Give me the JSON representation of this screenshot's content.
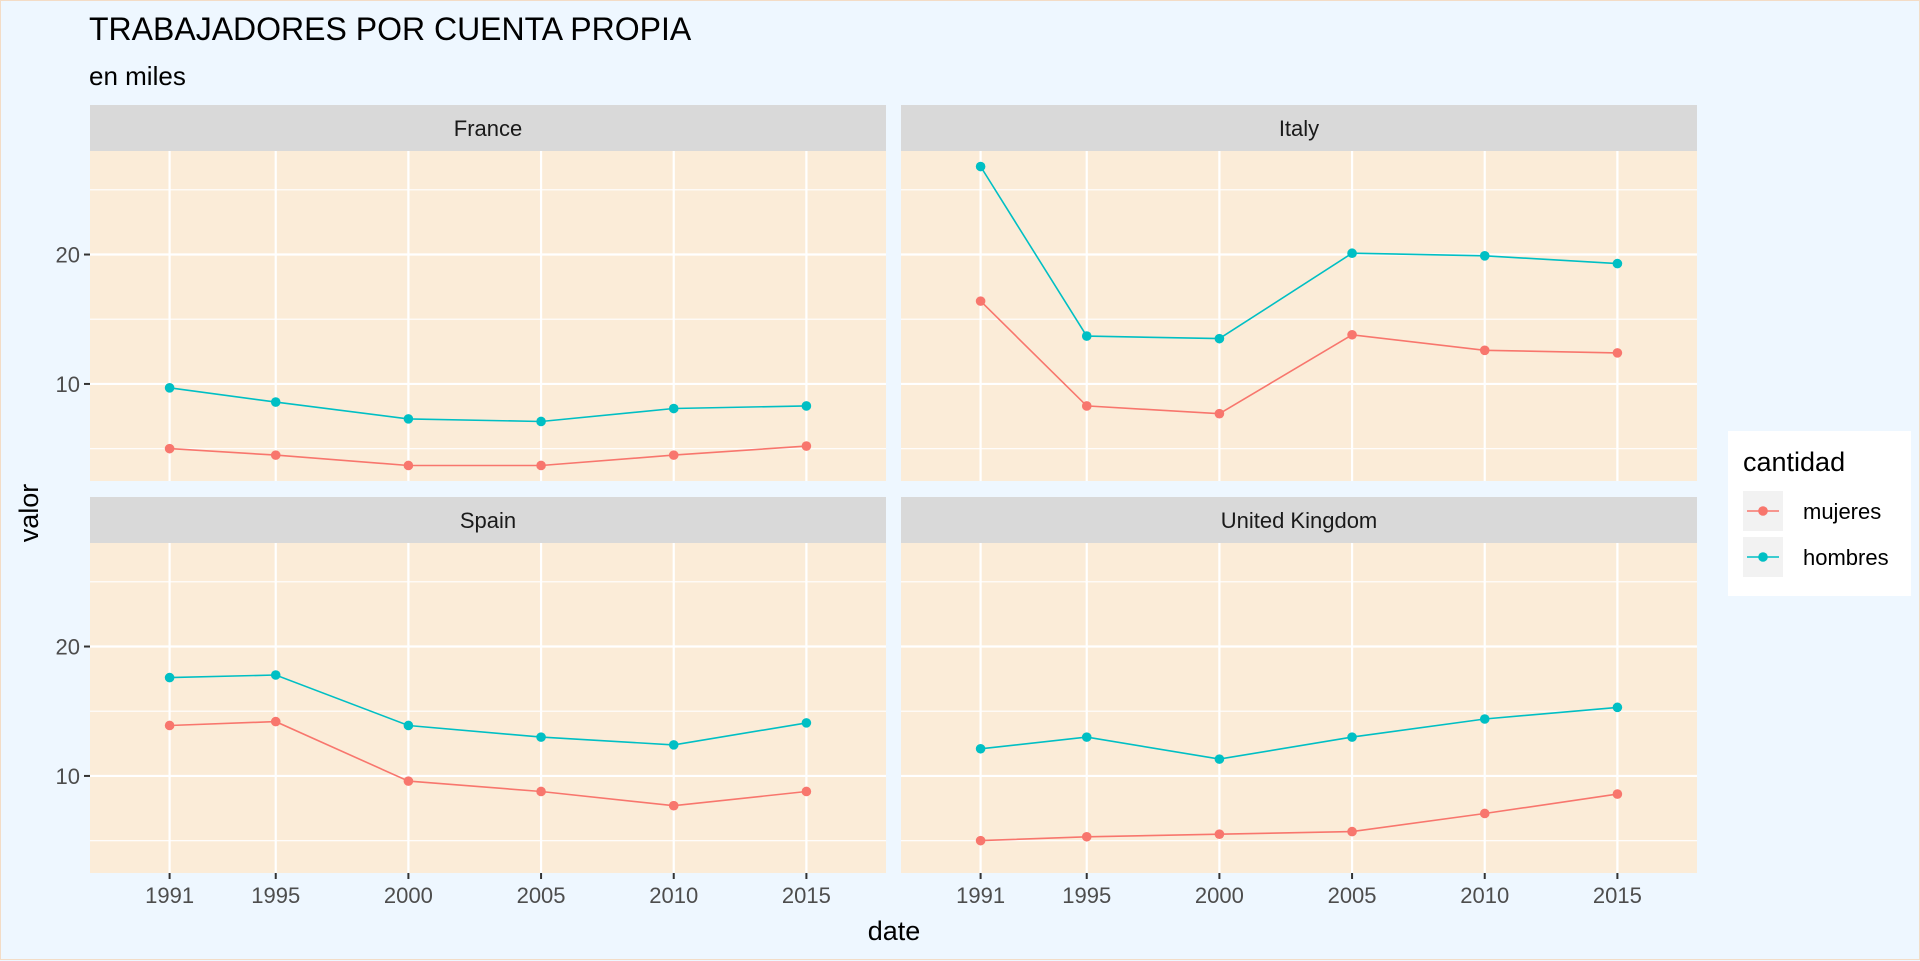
{
  "chart_data": {
    "type": "line",
    "title": "TRABAJADORES POR CUENTA PROPIA",
    "subtitle": "en miles",
    "xlabel": "date",
    "ylabel": "valor",
    "x": [
      1991,
      1995,
      2000,
      2005,
      2010,
      2015
    ],
    "xlim": [
      1988,
      2018
    ],
    "ylim": [
      2.5,
      28.0
    ],
    "y_ticks": [
      10,
      20
    ],
    "y_minor_ticks": [
      5,
      15,
      25
    ],
    "grid": true,
    "legend": {
      "title": "cantidad",
      "position": "right",
      "entries": [
        "mujeres",
        "hombres"
      ]
    },
    "colors": {
      "mujeres": "#F8766D",
      "hombres": "#00BFC4"
    },
    "background": {
      "page": "#eef7ff",
      "panel": "#fbecd8",
      "strip": "#d9d9d9",
      "grid": "#ffffff"
    },
    "facets": [
      {
        "name": "France",
        "series": [
          {
            "name": "mujeres",
            "values": [
              5.0,
              4.5,
              3.7,
              3.7,
              4.5,
              5.2
            ]
          },
          {
            "name": "hombres",
            "values": [
              9.7,
              8.6,
              7.3,
              7.1,
              8.1,
              8.3
            ]
          }
        ]
      },
      {
        "name": "Italy",
        "series": [
          {
            "name": "mujeres",
            "values": [
              16.4,
              8.3,
              7.7,
              13.8,
              12.6,
              12.4
            ]
          },
          {
            "name": "hombres",
            "values": [
              26.8,
              13.7,
              13.5,
              20.1,
              19.9,
              19.3
            ]
          }
        ]
      },
      {
        "name": "Spain",
        "series": [
          {
            "name": "mujeres",
            "values": [
              13.9,
              14.2,
              9.6,
              8.8,
              7.7,
              8.8
            ]
          },
          {
            "name": "hombres",
            "values": [
              17.6,
              17.8,
              13.9,
              13.0,
              12.4,
              14.1
            ]
          }
        ]
      },
      {
        "name": "United Kingdom",
        "series": [
          {
            "name": "mujeres",
            "values": [
              5.0,
              5.3,
              5.5,
              5.7,
              7.1,
              8.6
            ]
          },
          {
            "name": "hombres",
            "values": [
              12.1,
              13.0,
              11.3,
              13.0,
              14.4,
              15.3
            ]
          }
        ]
      }
    ]
  }
}
